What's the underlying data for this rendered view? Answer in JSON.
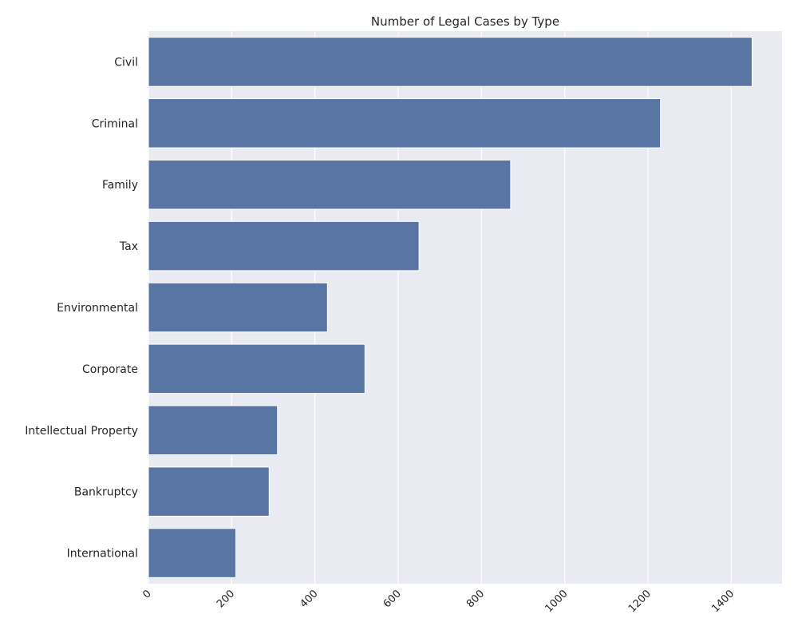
{
  "chart_data": {
    "type": "bar",
    "orientation": "horizontal",
    "title": "Number of Legal Cases by Type",
    "xlabel": "",
    "ylabel": "",
    "categories": [
      "Civil",
      "Criminal",
      "Family",
      "Tax",
      "Environmental",
      "Corporate",
      "Intellectual Property",
      "Bankruptcy",
      "International"
    ],
    "values": [
      1450,
      1230,
      870,
      650,
      430,
      520,
      310,
      290,
      210
    ],
    "xlim": [
      0,
      1522
    ],
    "xticks": [
      "0",
      "200",
      "400",
      "600",
      "800",
      "1000",
      "1200",
      "1400"
    ],
    "xtick_rotation_deg": 45,
    "grid": true,
    "legend": "none"
  },
  "colors": {
    "bar": "#5975a4",
    "background": "#eaeaf2",
    "grid": "#ffffff",
    "text": "#262626"
  }
}
